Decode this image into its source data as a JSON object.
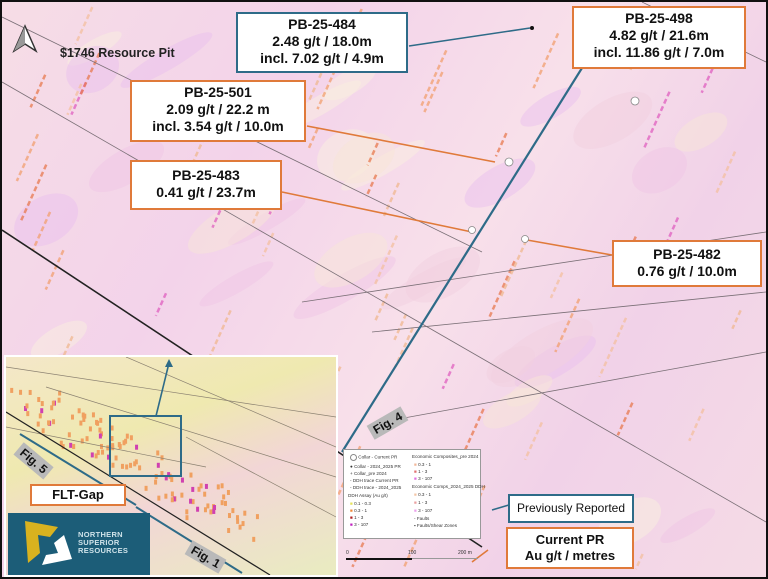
{
  "map": {
    "resource_pit_label": "$1746 Resource Pit",
    "north_arrow": "north-arrow-icon",
    "callouts": [
      {
        "hole": "PB-25-484",
        "lines": [
          "2.48 g/t / 18.0m",
          "incl. 7.02 g/t / 4.9m"
        ],
        "border": "#2e6b88"
      },
      {
        "hole": "PB-25-498",
        "lines": [
          "4.82 g/t / 21.6m",
          "incl. 11.86 g/t / 7.0m"
        ],
        "border": "#e07a3a"
      },
      {
        "hole": "PB-25-501",
        "lines": [
          "2.09 g/t / 22.2 m",
          "incl. 3.54 g/t / 10.0m"
        ],
        "border": "#e07a3a"
      },
      {
        "hole": "PB-25-483",
        "lines": [
          "0.41 g/t / 23.7m"
        ],
        "border": "#e07a3a"
      },
      {
        "hole": "PB-25-482",
        "lines": [
          "0.76 g/t / 10.0m"
        ],
        "border": "#e07a3a"
      }
    ],
    "section_labels": {
      "fig4": "Fig. 4",
      "fig5": "Fig. 5",
      "fig1": "Fig. 1"
    },
    "inset_label": "FLT-Gap",
    "key": {
      "previously_reported": "Previously Reported",
      "current_pr": "Current PR",
      "units": "Au g/t / metres"
    },
    "colors": {
      "previous": "#2e6b88",
      "current": "#e07a3a"
    }
  },
  "legend": {
    "left": [
      "Collar - Current PR",
      "Collar - 2024_2025 PR",
      "Collar_pre 2024",
      "DDH trace Current PR",
      "DDH trace - 2024_2025"
    ],
    "assay_title": "DDH Assay (Au g/t)",
    "assay": [
      "0.1 - 0.3",
      "0.3 - 1",
      "1 - 3",
      "3 - 107"
    ],
    "comp_pre_title": "Economic Composites_pre 2024",
    "comp_pre": [
      "0.3 - 1",
      "1 - 3",
      "3 - 107"
    ],
    "comp_new_title": "Economic Comps_2024_2025 DDH",
    "comp_new": [
      "0.3 - 1",
      "1 - 3",
      "3 - 107"
    ],
    "faults": "Faults",
    "shear": "Faults/Shear Zones",
    "scale": [
      "0",
      "100",
      "200 m"
    ]
  },
  "logo": {
    "text": [
      "NORTHERN",
      "SUPERIOR",
      "RESOURCES"
    ]
  }
}
